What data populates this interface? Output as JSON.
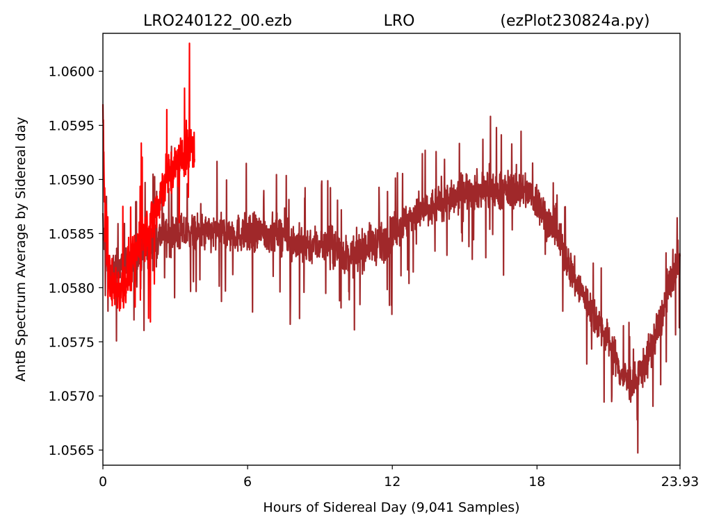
{
  "chart_data": {
    "type": "line",
    "title_parts": [
      "LRO240122_00.ezb",
      "LRO",
      "(ezPlot230824a.py)"
    ],
    "xlabel": "Hours of Sidereal Day  (9,041 Samples)",
    "ylabel": "AntB Spectrum Average by Sidereal day",
    "xlim": [
      0,
      23.93
    ],
    "ylim": [
      1.05636,
      1.06035
    ],
    "x_ticks": [
      0,
      6,
      12,
      18,
      23.93
    ],
    "x_tick_labels": [
      "0",
      "6",
      "12",
      "18",
      "23.93"
    ],
    "y_ticks": [
      1.0565,
      1.057,
      1.0575,
      1.058,
      1.0585,
      1.059,
      1.0595,
      1.06
    ],
    "y_tick_labels": [
      "1.0565",
      "1.0570",
      "1.0575",
      "1.0580",
      "1.0585",
      "1.0590",
      "1.0595",
      "1.0600"
    ],
    "grid": false,
    "series": [
      {
        "color": "#a0282a",
        "x": [
          0,
          0.1,
          0.3,
          0.6,
          1,
          1.5,
          2,
          2.5,
          3,
          3.5,
          4,
          4.5,
          5,
          5.5,
          6,
          6.5,
          7,
          7.5,
          8,
          8.5,
          9,
          9.5,
          10,
          10.5,
          11,
          11.5,
          12,
          12.5,
          13,
          13.5,
          14,
          14.5,
          15,
          15.5,
          16,
          16.5,
          17,
          17.5,
          18,
          18.5,
          19,
          19.5,
          20,
          20.5,
          21,
          21.5,
          22,
          22.5,
          23,
          23.5,
          23.93
        ],
        "center": [
          1.0586,
          1.0583,
          1.0581,
          1.0582,
          1.0582,
          1.0583,
          1.0584,
          1.0585,
          1.0585,
          1.0585,
          1.0585,
          1.0585,
          1.0585,
          1.0585,
          1.0585,
          1.0585,
          1.0585,
          1.0585,
          1.0584,
          1.0584,
          1.0584,
          1.0584,
          1.0583,
          1.0583,
          1.0584,
          1.0584,
          1.0585,
          1.0586,
          1.0587,
          1.0587,
          1.0588,
          1.0588,
          1.0589,
          1.0589,
          1.0589,
          1.0589,
          1.0589,
          1.0589,
          1.0588,
          1.0586,
          1.0584,
          1.0581,
          1.0579,
          1.0577,
          1.0575,
          1.0572,
          1.0571,
          1.0573,
          1.0576,
          1.058,
          1.0583
        ],
        "spread": [
          0.0003,
          0.0003,
          0.0003,
          0.0003,
          0.0003,
          0.0003,
          0.0003,
          0.0003,
          0.0003,
          0.0003,
          0.0003,
          0.0003,
          0.0003,
          0.0003,
          0.0003,
          0.0003,
          0.0003,
          0.0003,
          0.0003,
          0.0003,
          0.0003,
          0.0003,
          0.0003,
          0.0003,
          0.0003,
          0.0003,
          0.0003,
          0.0003,
          0.0003,
          0.0003,
          0.0003,
          0.0003,
          0.0003,
          0.0003,
          0.0003,
          0.0003,
          0.0003,
          0.0003,
          0.0003,
          0.0003,
          0.0003,
          0.0003,
          0.0003,
          0.0003,
          0.0003,
          0.0003,
          0.0003,
          0.0003,
          0.0003,
          0.0003,
          0.0003
        ]
      },
      {
        "color": "#ff0000",
        "x": [
          0,
          0.05,
          0.2,
          0.4,
          0.7,
          1,
          1.3,
          1.6,
          2,
          2.3,
          2.6,
          3,
          3.3,
          3.6,
          3.8
        ],
        "center": [
          1.0597,
          1.0589,
          1.0582,
          1.058,
          1.058,
          1.0581,
          1.0583,
          1.0585,
          1.0586,
          1.0588,
          1.059,
          1.0591,
          1.0592,
          1.0593,
          1.0593
        ],
        "spread": [
          0.0004,
          0.0004,
          0.0004,
          0.0004,
          0.0004,
          0.0004,
          0.0004,
          0.0004,
          0.0004,
          0.0004,
          0.0004,
          0.0004,
          0.0004,
          0.0004,
          0.0004
        ]
      }
    ]
  }
}
